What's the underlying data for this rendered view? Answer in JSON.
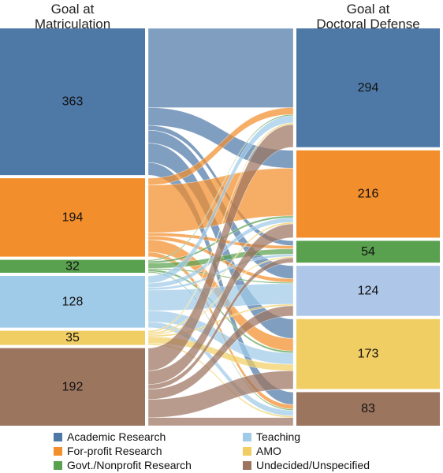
{
  "titles": {
    "left": [
      "Goal at",
      "Matriculation"
    ],
    "right": [
      "Goal at",
      "Doctoral Defense"
    ]
  },
  "categories": [
    {
      "key": "academic",
      "label": "Academic Research",
      "color": "#4e79a7"
    },
    {
      "key": "forprofit",
      "label": "For-profit Research",
      "color": "#f28e2b"
    },
    {
      "key": "govt",
      "label": "Govt./Nonprofit Research",
      "color": "#59a14f"
    },
    {
      "key": "teaching",
      "label": "Teaching",
      "color": "#a0cbe8"
    },
    {
      "key": "amo",
      "label": "AMO",
      "color": "#f1ce63"
    },
    {
      "key": "undecided",
      "label": "Undecided/Unspecified",
      "color": "#9c755f"
    }
  ],
  "right_teaching_color": "#aec7e8",
  "left_nodes": [
    {
      "key": "academic",
      "value": "363"
    },
    {
      "key": "forprofit",
      "value": "194"
    },
    {
      "key": "govt",
      "value": "32"
    },
    {
      "key": "teaching",
      "value": "128"
    },
    {
      "key": "amo",
      "value": "35"
    },
    {
      "key": "undecided",
      "value": "192"
    }
  ],
  "right_nodes": [
    {
      "key": "academic",
      "value": "294"
    },
    {
      "key": "forprofit",
      "value": "216"
    },
    {
      "key": "govt",
      "value": "54"
    },
    {
      "key": "teaching",
      "value": "124"
    },
    {
      "key": "amo",
      "value": "173"
    },
    {
      "key": "undecided",
      "value": "83"
    }
  ],
  "flows": {
    "academic": {
      "academic": 196,
      "forprofit": 44,
      "govt": 12,
      "teaching": 32,
      "amo": 48,
      "undecided": 31
    },
    "forprofit": {
      "academic": 17,
      "forprofit": 118,
      "govt": 8,
      "teaching": 9,
      "amo": 31,
      "undecided": 11
    },
    "govt": {
      "academic": 3,
      "forprofit": 5,
      "govt": 13,
      "teaching": 3,
      "amo": 5,
      "undecided": 3
    },
    "teaching": {
      "academic": 18,
      "forprofit": 11,
      "govt": 6,
      "teaching": 51,
      "amo": 28,
      "undecided": 14
    },
    "amo": {
      "academic": 4,
      "forprofit": 4,
      "govt": 3,
      "teaching": 4,
      "amo": 16,
      "undecided": 4
    },
    "undecided": {
      "academic": 56,
      "forprofit": 34,
      "govt": 12,
      "teaching": 25,
      "amo": 45,
      "undecided": 20
    }
  },
  "legend": [
    {
      "key": "academic",
      "label": "Academic Research"
    },
    {
      "key": "forprofit",
      "label": "For-profit Research"
    },
    {
      "key": "govt",
      "label": "Govt./Nonprofit Research"
    },
    {
      "key": "teaching",
      "label": "Teaching"
    },
    {
      "key": "amo",
      "label": "AMO"
    },
    {
      "key": "undecided",
      "label": "Undecided/Unspecified"
    }
  ]
}
